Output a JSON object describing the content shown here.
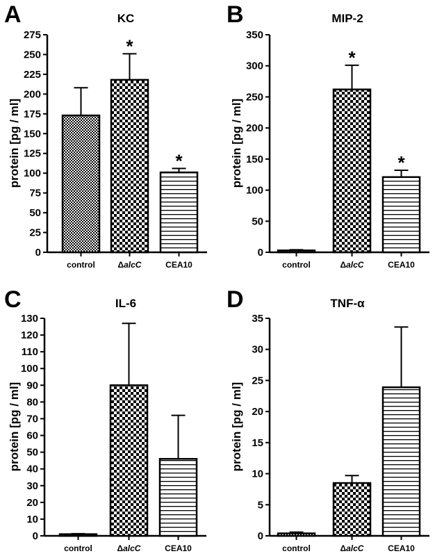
{
  "chart_data": [
    {
      "type": "bar",
      "panel": "A",
      "title": "KC",
      "ylabel": "protein [pg / ml]",
      "categories": [
        "control",
        "ΔalcC",
        "CEA10"
      ],
      "values": [
        173,
        218,
        101
      ],
      "errors": [
        35,
        33,
        5
      ],
      "significance": [
        "",
        "*",
        "*"
      ],
      "ylim": [
        0,
        275
      ],
      "yticks": [
        0,
        25,
        50,
        75,
        100,
        125,
        150,
        175,
        200,
        225,
        250,
        275
      ]
    },
    {
      "type": "bar",
      "panel": "B",
      "title": "MIP-2",
      "ylabel": "protein [pg / ml]",
      "categories": [
        "control",
        "ΔalcC",
        "CEA10"
      ],
      "values": [
        3,
        262,
        121
      ],
      "errors": [
        1,
        39,
        11
      ],
      "significance": [
        "",
        "*",
        "*"
      ],
      "ylim": [
        0,
        350
      ],
      "yticks": [
        0,
        50,
        100,
        150,
        200,
        250,
        300,
        350
      ]
    },
    {
      "type": "bar",
      "panel": "C",
      "title": "IL-6",
      "ylabel": "protein [pg / ml]",
      "categories": [
        "control",
        "ΔalcC",
        "CEA10"
      ],
      "values": [
        1,
        90,
        46
      ],
      "errors": [
        0.3,
        37,
        26
      ],
      "significance": [
        "",
        "",
        ""
      ],
      "ylim": [
        0,
        130
      ],
      "yticks": [
        0,
        10,
        20,
        30,
        40,
        50,
        60,
        70,
        80,
        90,
        100,
        110,
        120,
        130
      ]
    },
    {
      "type": "bar",
      "panel": "D",
      "title": "TNF-α",
      "ylabel": "protein [pg / ml]",
      "categories": [
        "control",
        "ΔalcC",
        "CEA10"
      ],
      "values": [
        0.4,
        8.5,
        23.9
      ],
      "errors": [
        0.2,
        1.2,
        9.7
      ],
      "significance": [
        "",
        "",
        ""
      ],
      "ylim": [
        0,
        35
      ],
      "yticks": [
        0,
        5,
        10,
        15,
        20,
        25,
        30,
        35
      ]
    }
  ],
  "bar_patterns": [
    "checker-fine",
    "checker-coarse",
    "horizontal-lines"
  ]
}
